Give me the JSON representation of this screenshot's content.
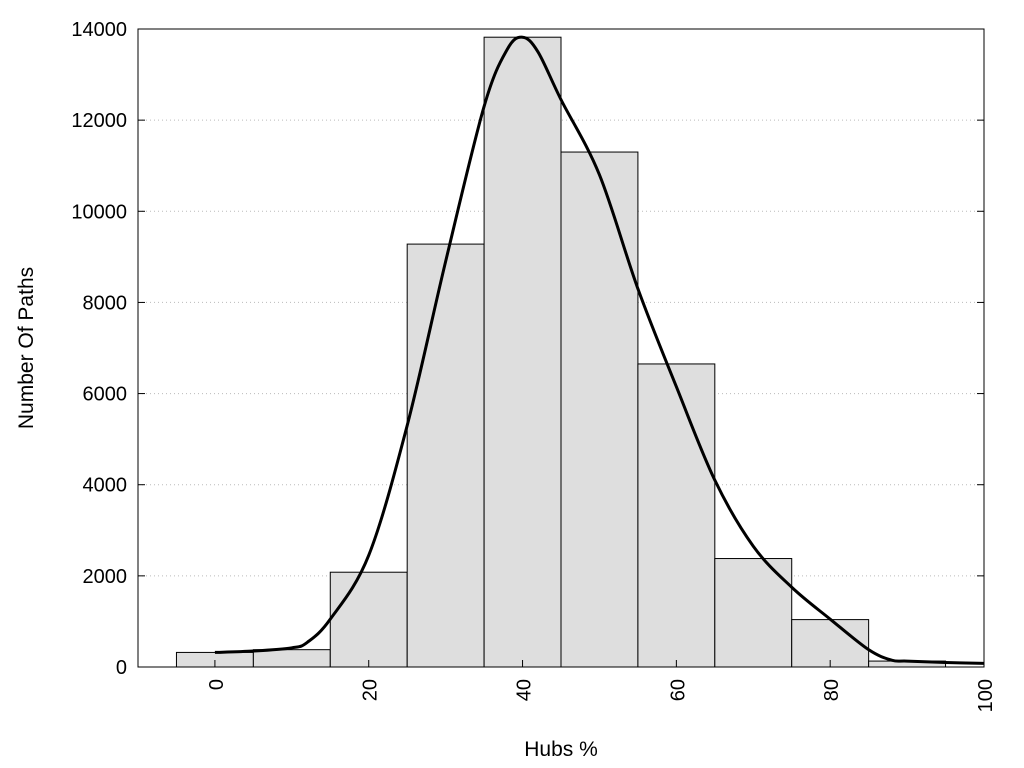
{
  "chart_data": {
    "type": "bar",
    "xlabel": "Hubs %",
    "ylabel": "Number Of Paths",
    "xlim": [
      -10,
      100
    ],
    "ylim": [
      0,
      14000
    ],
    "x_ticks": [
      0,
      20,
      40,
      60,
      80,
      100
    ],
    "y_ticks": [
      0,
      2000,
      4000,
      6000,
      8000,
      10000,
      12000,
      14000
    ],
    "grid": "horizontal dotted",
    "bin_width": 10,
    "bars": [
      {
        "x": 0,
        "value": 320
      },
      {
        "x": 10,
        "value": 380
      },
      {
        "x": 20,
        "value": 2080
      },
      {
        "x": 30,
        "value": 9280
      },
      {
        "x": 40,
        "value": 13820
      },
      {
        "x": 50,
        "value": 11300
      },
      {
        "x": 60,
        "value": 6650
      },
      {
        "x": 70,
        "value": 2380
      },
      {
        "x": 80,
        "value": 1040
      },
      {
        "x": 90,
        "value": 130
      }
    ],
    "density_curve": {
      "x": [
        0,
        5,
        10,
        12,
        15,
        20,
        25,
        30,
        35,
        38,
        40,
        42,
        45,
        50,
        55,
        60,
        65,
        70,
        75,
        80,
        85,
        88,
        90,
        95,
        100
      ],
      "y": [
        320,
        350,
        420,
        540,
        1050,
        2450,
        5300,
        8900,
        12300,
        13550,
        13820,
        13500,
        12450,
        10800,
        8300,
        6150,
        4100,
        2650,
        1750,
        1050,
        380,
        150,
        130,
        100,
        80
      ]
    },
    "colors": {
      "bar_fill": "#dedede",
      "bar_stroke": "#000000",
      "curve": "#000000",
      "grid": "#bbbbbb"
    }
  }
}
